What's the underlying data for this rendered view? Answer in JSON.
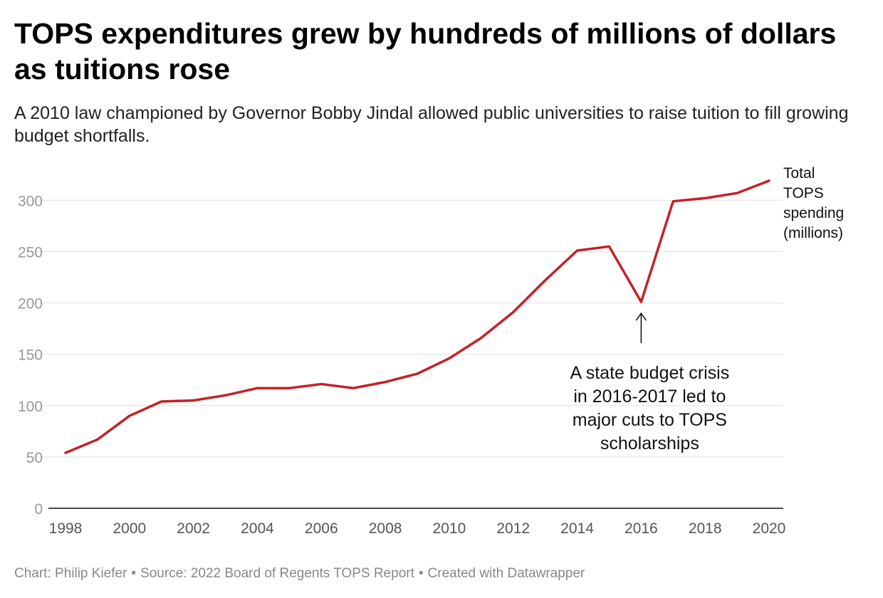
{
  "title": "TOPS expenditures grew by hundreds of millions of dollars as tuitions rose",
  "subtitle": "A 2010 law championed by Governor Bobby Jindal allowed public universities to raise tuition to fill growing budget shortfalls.",
  "footer": {
    "chart_credit": "Chart: Philip Kiefer",
    "source": "Source: 2022 Board of Regents TOPS Report",
    "created_with": "Created with Datawrapper",
    "separator": "•"
  },
  "colors": {
    "line": "#c42127",
    "grid": "#e1e1e1",
    "tick_text": "#999999",
    "axis": "#111111"
  },
  "chart_data": {
    "type": "line",
    "title": "TOPS expenditures grew by hundreds of millions of dollars as tuitions rose",
    "xlabel": "",
    "ylabel": "",
    "x": [
      1998,
      1999,
      2000,
      2001,
      2002,
      2003,
      2004,
      2005,
      2006,
      2007,
      2008,
      2009,
      2010,
      2011,
      2012,
      2013,
      2014,
      2015,
      2016,
      2017,
      2018,
      2019,
      2020
    ],
    "series": [
      {
        "name": "Total TOPS spending (millions)",
        "label_lines": [
          "Total",
          "TOPS",
          "spending",
          "(millions)"
        ],
        "values": [
          54,
          67,
          90,
          104,
          105,
          110,
          117,
          117,
          121,
          117,
          123,
          131,
          146,
          166,
          191,
          222,
          251,
          255,
          201,
          299,
          302,
          307,
          319
        ]
      }
    ],
    "xlim": [
      1998,
      2020
    ],
    "ylim": [
      0,
      330
    ],
    "x_ticks": [
      1998,
      2000,
      2002,
      2004,
      2006,
      2008,
      2010,
      2012,
      2014,
      2016,
      2018,
      2020
    ],
    "y_ticks": [
      0,
      50,
      100,
      150,
      200,
      250,
      300
    ],
    "grid": true,
    "legend": "direct label at line end",
    "annotation": {
      "x": 2016,
      "y": 201,
      "lines": [
        "A state budget crisis",
        "in 2016-2017 led to",
        "major cuts to TOPS",
        "scholarships"
      ]
    }
  }
}
